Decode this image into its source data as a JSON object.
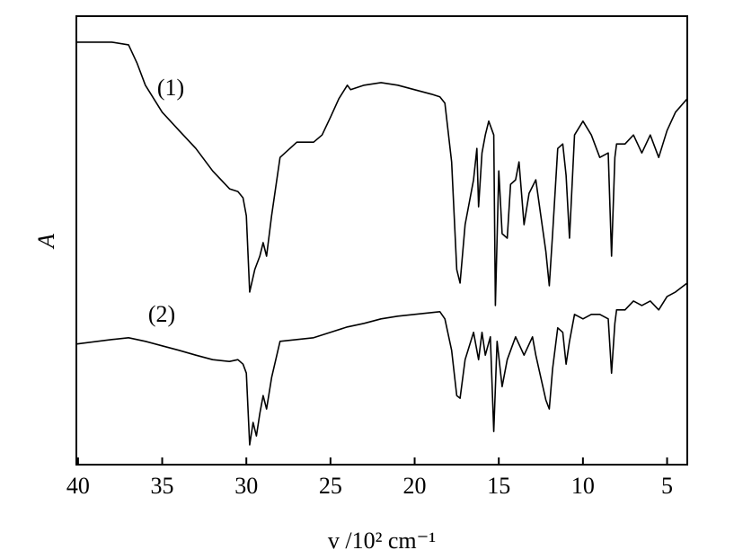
{
  "chart_data": {
    "type": "line",
    "x_label": "v /10² cm⁻¹",
    "y_label": "A",
    "xlim": [
      40.1,
      3.8
    ],
    "ylim": [
      0,
      100
    ],
    "xticks": [
      40,
      35,
      30,
      25,
      20,
      15,
      10,
      5
    ],
    "series": [
      {
        "name": "(1)",
        "color": "#000000",
        "x": [
          40.1,
          38,
          37,
          36.5,
          36,
          35,
          34,
          33,
          32,
          31,
          30.5,
          30.2,
          30,
          29.8,
          29.5,
          29.2,
          29,
          28.8,
          28.5,
          28,
          27,
          26,
          25.5,
          25,
          24.5,
          24,
          23.8,
          23,
          22,
          21,
          20,
          19,
          18.5,
          18.2,
          17.8,
          17.5,
          17.3,
          17,
          16.5,
          16.3,
          16.2,
          16,
          15.8,
          15.6,
          15.3,
          15.2,
          15,
          14.8,
          14.5,
          14.3,
          14,
          13.8,
          13.5,
          13.2,
          12.8,
          12.5,
          12.2,
          12,
          11.8,
          11.5,
          11.2,
          11,
          10.8,
          10.5,
          10,
          9.5,
          9,
          8.5,
          8.3,
          8.1,
          8,
          7.5,
          7,
          6.5,
          6,
          5.5,
          5,
          4.5,
          3.8
        ],
        "values": [
          94.2,
          94.2,
          93.6,
          89.6,
          84.6,
          78.6,
          74.5,
          70.5,
          65.5,
          61.5,
          60.9,
          59.5,
          55.5,
          38.5,
          43.5,
          46.5,
          49.5,
          46.5,
          55.5,
          68.5,
          71.9,
          71.9,
          73.5,
          77.5,
          81.6,
          84.6,
          83.6,
          84.6,
          85.2,
          84.6,
          83.6,
          82.6,
          82.0,
          80.6,
          67.5,
          43.5,
          40.5,
          53.5,
          63.5,
          70.5,
          57.5,
          69.5,
          73.5,
          76.6,
          73.5,
          35.5,
          65.5,
          51.5,
          50.5,
          62.5,
          63.5,
          67.5,
          53.5,
          60.5,
          63.5,
          55.5,
          47.5,
          39.9,
          51.5,
          70.5,
          71.5,
          64.5,
          50.5,
          73.5,
          76.6,
          73.5,
          68.5,
          69.5,
          46.5,
          68.5,
          71.5,
          71.5,
          73.5,
          69.5,
          73.5,
          68.5,
          74.5,
          78.6,
          81.6
        ]
      },
      {
        "name": "(2)",
        "color": "#000000",
        "x": [
          40.1,
          38,
          37,
          36,
          35,
          34,
          33,
          32,
          31,
          30.5,
          30.2,
          30,
          29.8,
          29.6,
          29.4,
          29.2,
          29,
          28.8,
          28.5,
          28,
          27,
          26,
          25,
          24,
          23,
          22,
          21,
          20,
          19,
          18.5,
          18.2,
          17.8,
          17.5,
          17.3,
          17,
          16.5,
          16.2,
          16,
          15.8,
          15.5,
          15.3,
          15.1,
          14.8,
          14.5,
          14.2,
          14,
          13.5,
          13,
          12.8,
          12.5,
          12.2,
          12,
          11.8,
          11.5,
          11.2,
          11,
          10.8,
          10.5,
          10,
          9.5,
          9,
          8.5,
          8.3,
          8.1,
          8,
          7.5,
          7,
          6.5,
          6,
          5.5,
          5,
          4.5,
          3.8
        ],
        "values": [
          26.9,
          27.9,
          28.3,
          27.5,
          26.5,
          25.5,
          24.4,
          23.4,
          23.0,
          23.4,
          22.4,
          20.4,
          4.4,
          9.4,
          6.4,
          11.4,
          15.4,
          12.4,
          19.4,
          27.5,
          27.9,
          28.3,
          29.5,
          30.7,
          31.5,
          32.5,
          33.1,
          33.5,
          33.9,
          34.1,
          32.5,
          25.5,
          15.4,
          14.8,
          23.4,
          29.5,
          23.4,
          29.5,
          24.4,
          28.5,
          7.4,
          27.5,
          17.4,
          23.4,
          26.5,
          28.5,
          24.4,
          28.5,
          24.4,
          19.4,
          14.4,
          12.4,
          21.4,
          30.5,
          29.5,
          22.4,
          27.5,
          33.5,
          32.5,
          33.5,
          33.5,
          32.5,
          20.4,
          31.5,
          34.5,
          34.5,
          36.5,
          35.5,
          36.5,
          34.5,
          37.5,
          38.5,
          40.5
        ]
      }
    ]
  }
}
